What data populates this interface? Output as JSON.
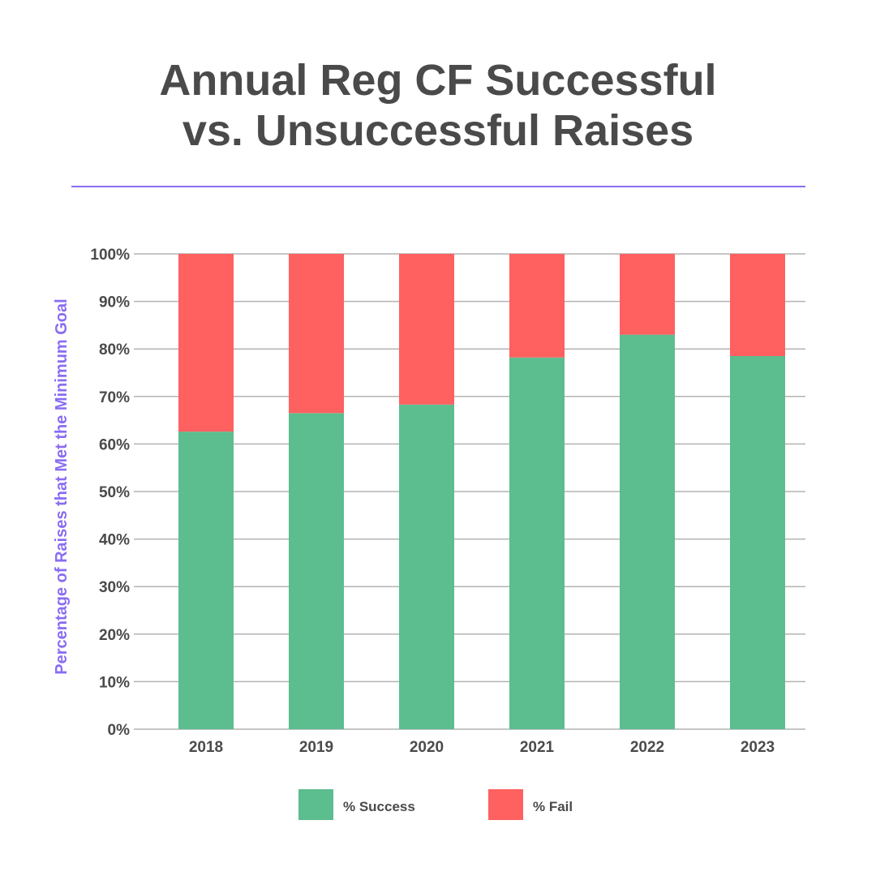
{
  "title_lines": [
    "Annual Reg CF Successful",
    "vs. Unsuccessful Raises"
  ],
  "colors": {
    "title": "#4a4a4a",
    "accent": "#8b6cf2",
    "success": "#5cbd8f",
    "fail": "#ff6060",
    "grid": "#b3b3b3"
  },
  "chart_data": {
    "type": "bar",
    "stacked": true,
    "title": "Annual Reg CF Successful vs. Unsuccessful Raises",
    "xlabel": "",
    "ylabel": "Percentage of Raises that Met the Minimum Goal",
    "categories": [
      "2018",
      "2019",
      "2020",
      "2021",
      "2022",
      "2023"
    ],
    "series": [
      {
        "name": "% Success",
        "color": "#5cbd8f",
        "values": [
          62.6,
          66.5,
          68.3,
          78.2,
          83.0,
          78.5
        ]
      },
      {
        "name": "% Fail",
        "color": "#ff6060",
        "values": [
          37.4,
          33.5,
          31.7,
          21.8,
          17.0,
          21.5
        ]
      }
    ],
    "ylim": [
      0,
      100
    ],
    "yticks": [
      "0%",
      "10%",
      "20%",
      "30%",
      "40%",
      "50%",
      "60%",
      "70%",
      "80%",
      "90%",
      "100%"
    ],
    "grid": true,
    "legend": "bottom"
  }
}
